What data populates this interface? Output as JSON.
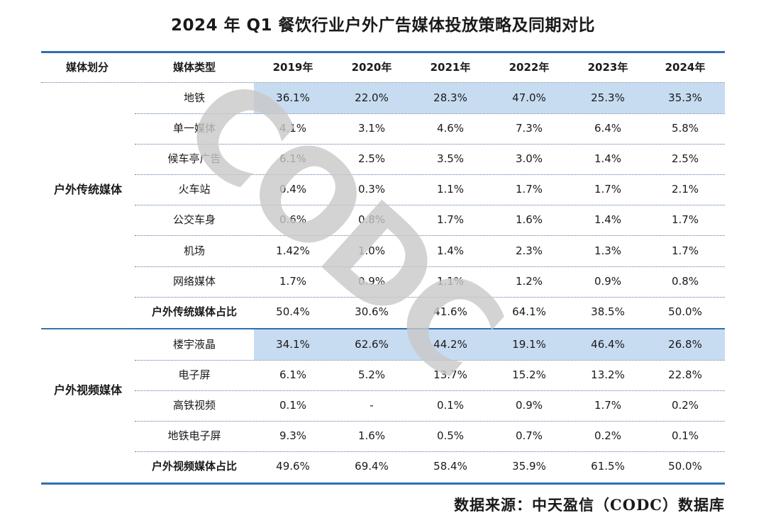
{
  "title": "2024 年 Q1 餐饮行业户外广告媒体投放策略及同期对比",
  "source": "数据来源：中天盈信（CODC）数据库",
  "watermark": "CODC",
  "colors": {
    "rule": "#2e6fb4",
    "highlight": "#c7dcf0",
    "watermark": "#c8c8c8"
  },
  "table": {
    "headers": [
      "媒体划分",
      "媒体类型",
      "2019年",
      "2020年",
      "2021年",
      "2022年",
      "2023年",
      "2024年"
    ],
    "groups": [
      {
        "name": "户外传统媒体",
        "rows": [
          {
            "type": "地铁",
            "values": [
              "36.1%",
              "22.0%",
              "28.3%",
              "47.0%",
              "25.3%",
              "35.3%"
            ],
            "highlight": true
          },
          {
            "type": "单一媒体",
            "values": [
              "4.1%",
              "3.1%",
              "4.6%",
              "7.3%",
              "6.4%",
              "5.8%"
            ]
          },
          {
            "type": "候车亭广告",
            "values": [
              "6.1%",
              "2.5%",
              "3.5%",
              "3.0%",
              "1.4%",
              "2.5%"
            ]
          },
          {
            "type": "火车站",
            "values": [
              "0.4%",
              "0.3%",
              "1.1%",
              "1.7%",
              "1.7%",
              "2.1%"
            ]
          },
          {
            "type": "公交车身",
            "values": [
              "0.6%",
              "0.8%",
              "1.7%",
              "1.6%",
              "1.4%",
              "1.7%"
            ]
          },
          {
            "type": "机场",
            "values": [
              "1.42%",
              "1.0%",
              "1.4%",
              "2.3%",
              "1.3%",
              "1.7%"
            ]
          },
          {
            "type": "网络媒体",
            "values": [
              "1.7%",
              "0.9%",
              "1.1%",
              "1.2%",
              "0.9%",
              "0.8%"
            ]
          },
          {
            "type": "户外传统媒体占比",
            "values": [
              "50.4%",
              "30.6%",
              "41.6%",
              "64.1%",
              "38.5%",
              "50.0%"
            ],
            "subtotal": true
          }
        ]
      },
      {
        "name": "户外视频媒体",
        "rows": [
          {
            "type": "楼宇液晶",
            "values": [
              "34.1%",
              "62.6%",
              "44.2%",
              "19.1%",
              "46.4%",
              "26.8%"
            ],
            "highlight": true
          },
          {
            "type": "电子屏",
            "values": [
              "6.1%",
              "5.2%",
              "13.7%",
              "15.2%",
              "13.2%",
              "22.8%"
            ]
          },
          {
            "type": "高铁视频",
            "values": [
              "0.1%",
              "-",
              "0.1%",
              "0.9%",
              "1.7%",
              "0.2%"
            ]
          },
          {
            "type": "地铁电子屏",
            "values": [
              "9.3%",
              "1.6%",
              "0.5%",
              "0.7%",
              "0.2%",
              "0.1%"
            ]
          },
          {
            "type": "户外视频媒体占比",
            "values": [
              "49.6%",
              "69.4%",
              "58.4%",
              "35.9%",
              "61.5%",
              "50.0%"
            ],
            "subtotal": true
          }
        ]
      }
    ]
  },
  "chart_data": {
    "type": "table",
    "title": "2024 年 Q1 餐饮行业户外广告媒体投放策略及同期对比",
    "columns": [
      "媒体划分",
      "媒体类型",
      "2019年",
      "2020年",
      "2021年",
      "2022年",
      "2023年",
      "2024年"
    ],
    "rows": [
      [
        "户外传统媒体",
        "地铁",
        "36.1%",
        "22.0%",
        "28.3%",
        "47.0%",
        "25.3%",
        "35.3%"
      ],
      [
        "户外传统媒体",
        "单一媒体",
        "4.1%",
        "3.1%",
        "4.6%",
        "7.3%",
        "6.4%",
        "5.8%"
      ],
      [
        "户外传统媒体",
        "候车亭广告",
        "6.1%",
        "2.5%",
        "3.5%",
        "3.0%",
        "1.4%",
        "2.5%"
      ],
      [
        "户外传统媒体",
        "火车站",
        "0.4%",
        "0.3%",
        "1.1%",
        "1.7%",
        "1.7%",
        "2.1%"
      ],
      [
        "户外传统媒体",
        "公交车身",
        "0.6%",
        "0.8%",
        "1.7%",
        "1.6%",
        "1.4%",
        "1.7%"
      ],
      [
        "户外传统媒体",
        "机场",
        "1.42%",
        "1.0%",
        "1.4%",
        "2.3%",
        "1.3%",
        "1.7%"
      ],
      [
        "户外传统媒体",
        "网络媒体",
        "1.7%",
        "0.9%",
        "1.1%",
        "1.2%",
        "0.9%",
        "0.8%"
      ],
      [
        "户外传统媒体",
        "户外传统媒体占比",
        "50.4%",
        "30.6%",
        "41.6%",
        "64.1%",
        "38.5%",
        "50.0%"
      ],
      [
        "户外视频媒体",
        "楼宇液晶",
        "34.1%",
        "62.6%",
        "44.2%",
        "19.1%",
        "46.4%",
        "26.8%"
      ],
      [
        "户外视频媒体",
        "电子屏",
        "6.1%",
        "5.2%",
        "13.7%",
        "15.2%",
        "13.2%",
        "22.8%"
      ],
      [
        "户外视频媒体",
        "高铁视频",
        "0.1%",
        "-",
        "0.1%",
        "0.9%",
        "1.7%",
        "0.2%"
      ],
      [
        "户外视频媒体",
        "地铁电子屏",
        "9.3%",
        "1.6%",
        "0.5%",
        "0.7%",
        "0.2%",
        "0.1%"
      ],
      [
        "户外视频媒体",
        "户外视频媒体占比",
        "49.6%",
        "69.4%",
        "58.4%",
        "35.9%",
        "61.5%",
        "50.0%"
      ]
    ]
  }
}
